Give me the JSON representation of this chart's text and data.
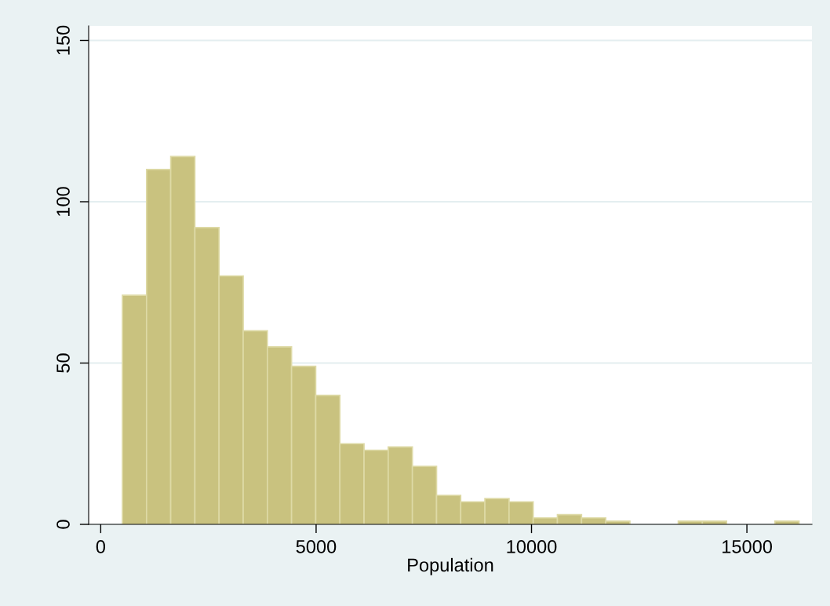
{
  "chart_data": {
    "type": "histogram",
    "xlabel": "Population",
    "bins": [
      503,
      1064,
      1625,
      2186,
      2747,
      3308,
      3869,
      4430,
      4991,
      5552,
      6113,
      6674,
      7235,
      7796,
      8357,
      8918,
      9479,
      10040,
      10601,
      11162,
      11723,
      12284,
      12845,
      13406,
      13967,
      14528,
      15089,
      15650,
      16211
    ],
    "values": [
      71,
      110,
      114,
      92,
      77,
      60,
      55,
      49,
      40,
      25,
      23,
      24,
      18,
      9,
      7,
      8,
      7,
      2,
      3,
      2,
      1,
      0,
      0,
      1,
      1,
      0,
      0,
      1
    ],
    "color": "#c9c27f",
    "xlim": [
      -280,
      16510
    ],
    "xticks": [
      0,
      5000,
      10000,
      15000
    ],
    "ylim": [
      0,
      154.5
    ],
    "yticks": [
      0,
      50,
      100,
      150
    ],
    "grid": "y"
  }
}
